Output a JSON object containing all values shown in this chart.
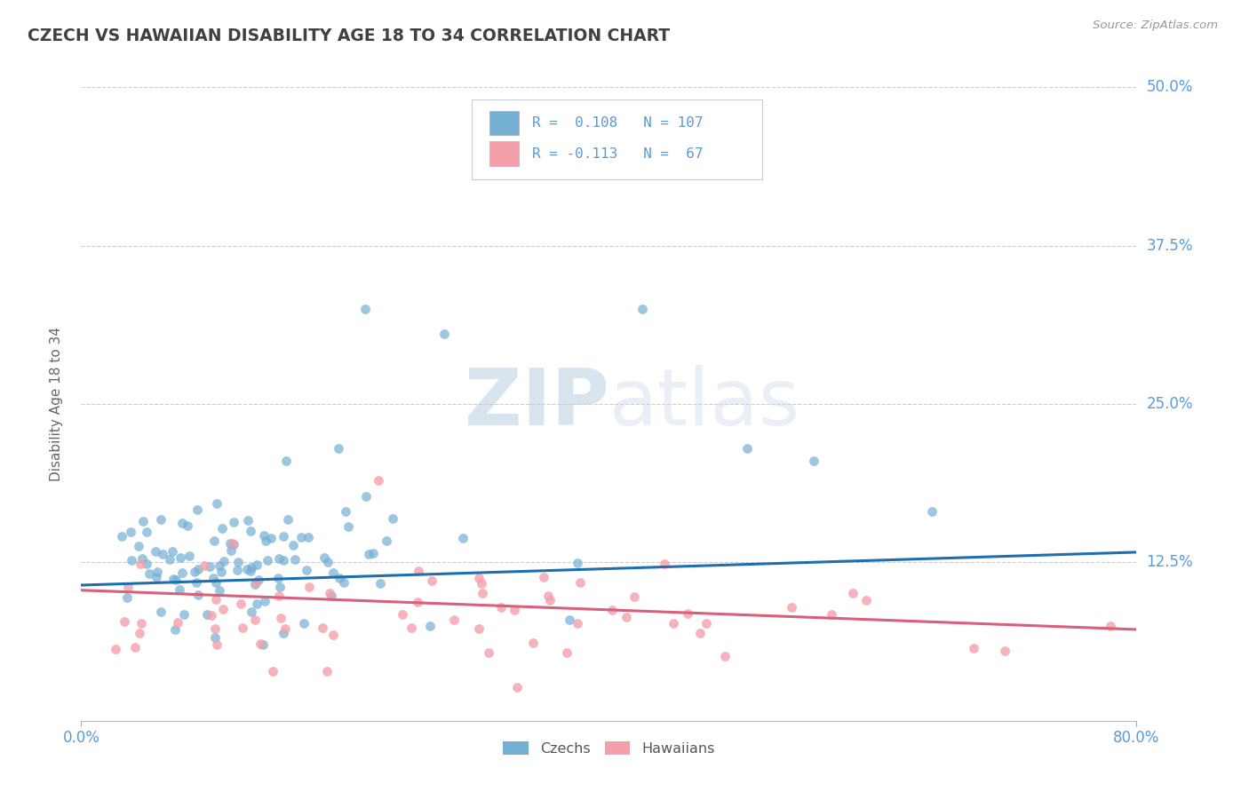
{
  "title": "CZECH VS HAWAIIAN DISABILITY AGE 18 TO 34 CORRELATION CHART",
  "source_text": "Source: ZipAtlas.com",
  "ylabel": "Disability Age 18 to 34",
  "xlim": [
    0.0,
    0.8
  ],
  "ylim": [
    0.0,
    0.5
  ],
  "ytick_positions": [
    0.0,
    0.125,
    0.25,
    0.375,
    0.5
  ],
  "ytick_labels_right": [
    "",
    "12.5%",
    "25.0%",
    "37.5%",
    "50.0%"
  ],
  "czech_color": "#74afd4",
  "hawaiian_color": "#f4a0aa",
  "trend_czech_color": "#1f6fb0",
  "trend_hawaiian_color": "#d95f7a",
  "R_czech": 0.108,
  "N_czech": 107,
  "R_hawaiian": -0.113,
  "N_hawaiian": 67,
  "background_color": "#ffffff",
  "grid_color": "#cccccc",
  "title_color": "#404040",
  "axis_label_color": "#5b9bd5",
  "watermark": "ZIPatlas",
  "trend_czech_start_y": 0.107,
  "trend_czech_end_y": 0.133,
  "trend_hawaiian_start_y": 0.103,
  "trend_hawaiian_end_y": 0.072
}
